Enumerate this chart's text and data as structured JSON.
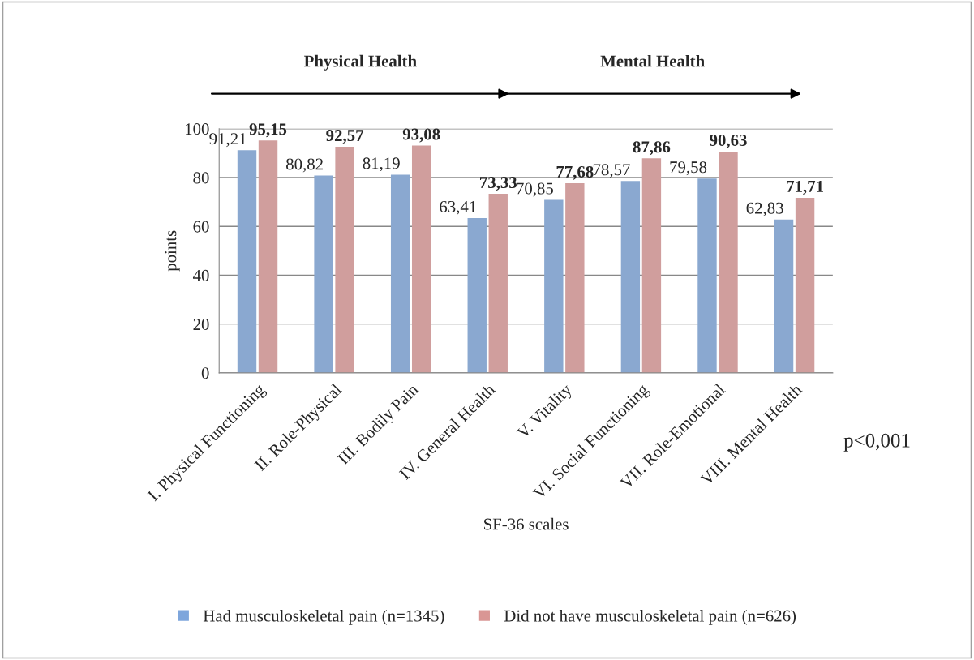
{
  "chart_data": {
    "type": "bar",
    "categories": [
      "I. Physical Functioning",
      "II. Role-Physical",
      "III. Bodily Pain",
      "IV. General Health",
      "V. Vitality",
      "VI. Social Functioning",
      "VII. Role-Emotional",
      "VIII. Mental Health"
    ],
    "series": [
      {
        "name": "Had musculoskeletal pain (n=1345)",
        "color": "#7ea6dc",
        "values": [
          91.21,
          80.82,
          81.19,
          63.41,
          70.85,
          78.57,
          79.58,
          62.83
        ],
        "value_labels": [
          "91,21",
          "80,82",
          "81,19",
          "63,41",
          "70,85",
          "78,57",
          "79,58",
          "62,83"
        ]
      },
      {
        "name": "Did not have musculoskeletal pain (n=626)",
        "color": "#d99694",
        "values": [
          95.15,
          92.57,
          93.08,
          73.33,
          77.68,
          87.86,
          90.63,
          71.71
        ],
        "value_labels": [
          "95,15",
          "92,57",
          "93,08",
          "73,33",
          "77,68",
          "87,86",
          "90,63",
          "71,71"
        ]
      }
    ],
    "xlabel": "SF-36 scales",
    "ylabel": "points",
    "ylim": [
      0,
      100
    ],
    "yticks": [
      0,
      20,
      40,
      60,
      80,
      100
    ],
    "grid": "y",
    "legend": "bottom",
    "annotations": [
      "Physical Health",
      "Mental Health",
      "p<0,001"
    ]
  }
}
